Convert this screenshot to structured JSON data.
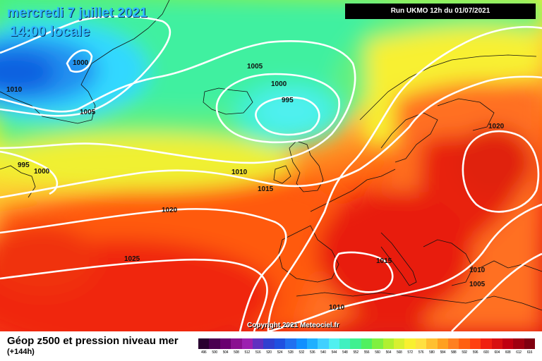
{
  "header": {
    "date": "mercredi 7 juillet 2021",
    "time": "14:00 locale",
    "run": "Run UKMO 12h du 01/07/2021"
  },
  "copyright": "Copyright 2021 Meteociel.fr",
  "footer": {
    "title": "Géop z500 et pression niveau mer",
    "lead": "(+144h)"
  },
  "isobar_labels": [
    "1000",
    "1010",
    "1005",
    "1005",
    "1000",
    "995",
    "995",
    "1000",
    "1010",
    "1015",
    "1020",
    "1025",
    "1020",
    "1015",
    "1010",
    "1005",
    "1010"
  ],
  "scale": {
    "colors": [
      "#2a0030",
      "#4a0050",
      "#6a0070",
      "#8a1090",
      "#9c20b0",
      "#6030c0",
      "#3040d0",
      "#2050e0",
      "#2070f0",
      "#1090ff",
      "#20b0ff",
      "#40d0ff",
      "#50f0f0",
      "#40f0c0",
      "#40f090",
      "#50f060",
      "#80f040",
      "#b0f030",
      "#d8f030",
      "#f8f030",
      "#ffe040",
      "#ffc030",
      "#ffa020",
      "#ff8020",
      "#ff6010",
      "#ff4010",
      "#f02010",
      "#d81010",
      "#c00010",
      "#a00010",
      "#800010",
      "#600010",
      "#400000",
      "#200000",
      "#000000"
    ],
    "labels": [
      "496",
      "500",
      "504",
      "508",
      "512",
      "516",
      "520",
      "524",
      "528",
      "532",
      "536",
      "540",
      "544",
      "548",
      "552",
      "556",
      "560",
      "564",
      "568",
      "572",
      "576",
      "580",
      "584",
      "588",
      "592",
      "596",
      "600",
      "604",
      "608",
      "612",
      "616"
    ]
  }
}
